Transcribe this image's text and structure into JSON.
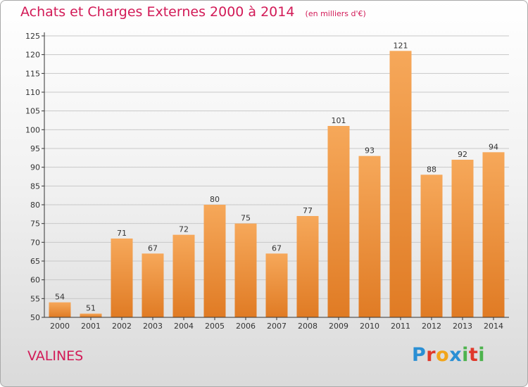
{
  "title": "Achats et Charges Externes 2000 à 2014",
  "unit_note": "(en milliers d'€)",
  "location": "VALINES",
  "brand": "Proxiti",
  "colors": {
    "title": "#d21a57",
    "bar_top": "#f6a85a",
    "bar_bottom": "#e07b24",
    "grid": "#c8c8c8",
    "axis": "#333333"
  },
  "chart_data": {
    "type": "bar",
    "categories": [
      "2000",
      "2001",
      "2002",
      "2003",
      "2004",
      "2005",
      "2006",
      "2007",
      "2008",
      "2009",
      "2010",
      "2011",
      "2012",
      "2013",
      "2014"
    ],
    "values": [
      54,
      51,
      71,
      67,
      72,
      80,
      75,
      67,
      77,
      101,
      93,
      121,
      88,
      92,
      94
    ],
    "ylim": [
      50,
      125
    ],
    "yticks": [
      50,
      55,
      60,
      65,
      70,
      75,
      80,
      85,
      90,
      95,
      100,
      105,
      110,
      115,
      120,
      125
    ],
    "grid": true,
    "data_labels": true
  }
}
